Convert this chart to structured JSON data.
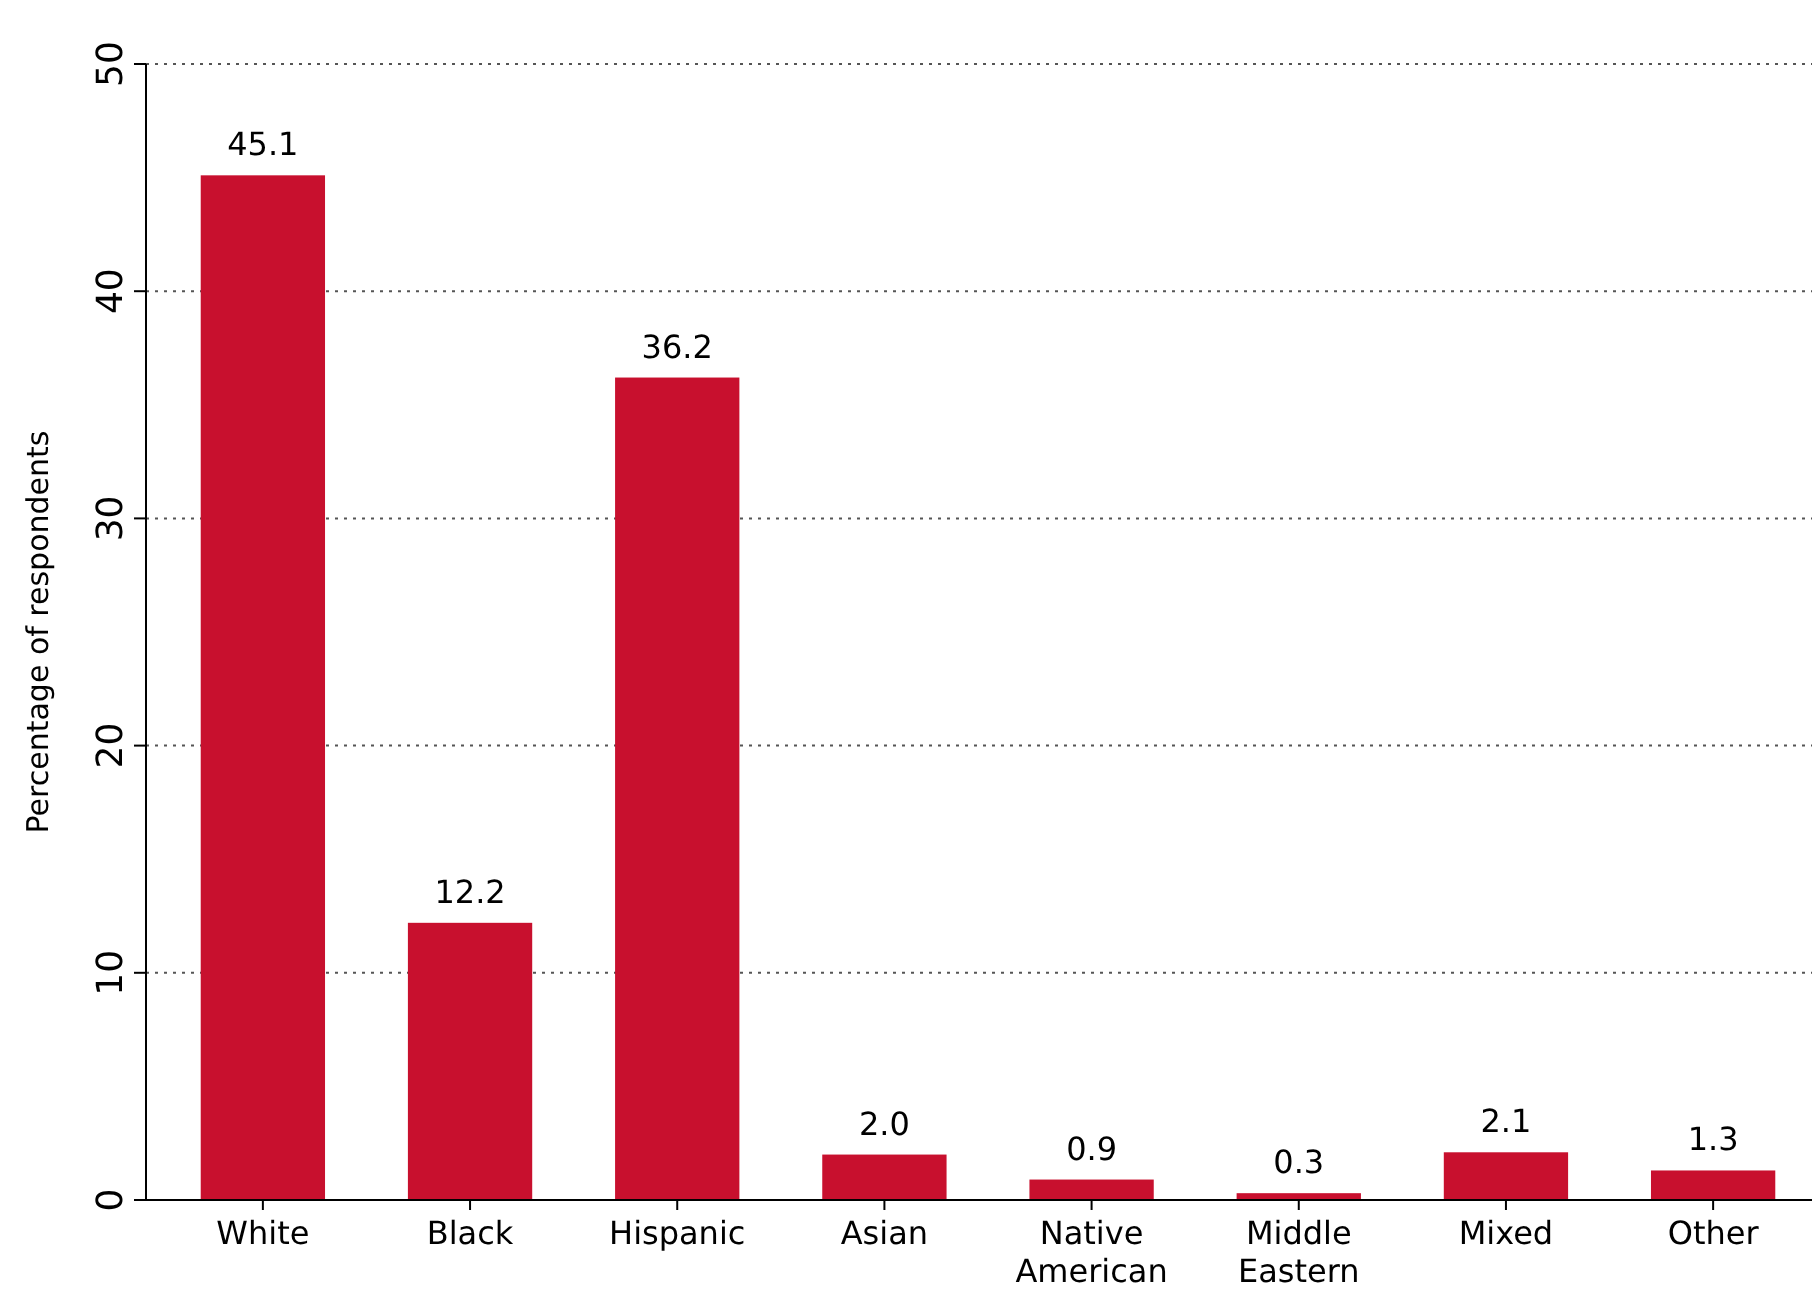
{
  "chart_data": {
    "type": "bar",
    "ylabel": "Percentage of respondents",
    "categories": [
      "White",
      "Black",
      "Hispanic",
      "Asian",
      "Native American",
      "Middle Eastern",
      "Mixed",
      "Other"
    ],
    "values": [
      45.1,
      12.2,
      36.2,
      2.0,
      0.9,
      0.3,
      2.1,
      1.3
    ],
    "value_labels": [
      "45.1",
      "12.2",
      "36.2",
      "2.0",
      "0.9",
      "0.3",
      "2.1",
      "1.3"
    ],
    "color": "#c8102e",
    "ylim": [
      0,
      50
    ],
    "yticks": [
      0,
      10,
      20,
      30,
      40,
      50
    ],
    "grid": "y"
  }
}
